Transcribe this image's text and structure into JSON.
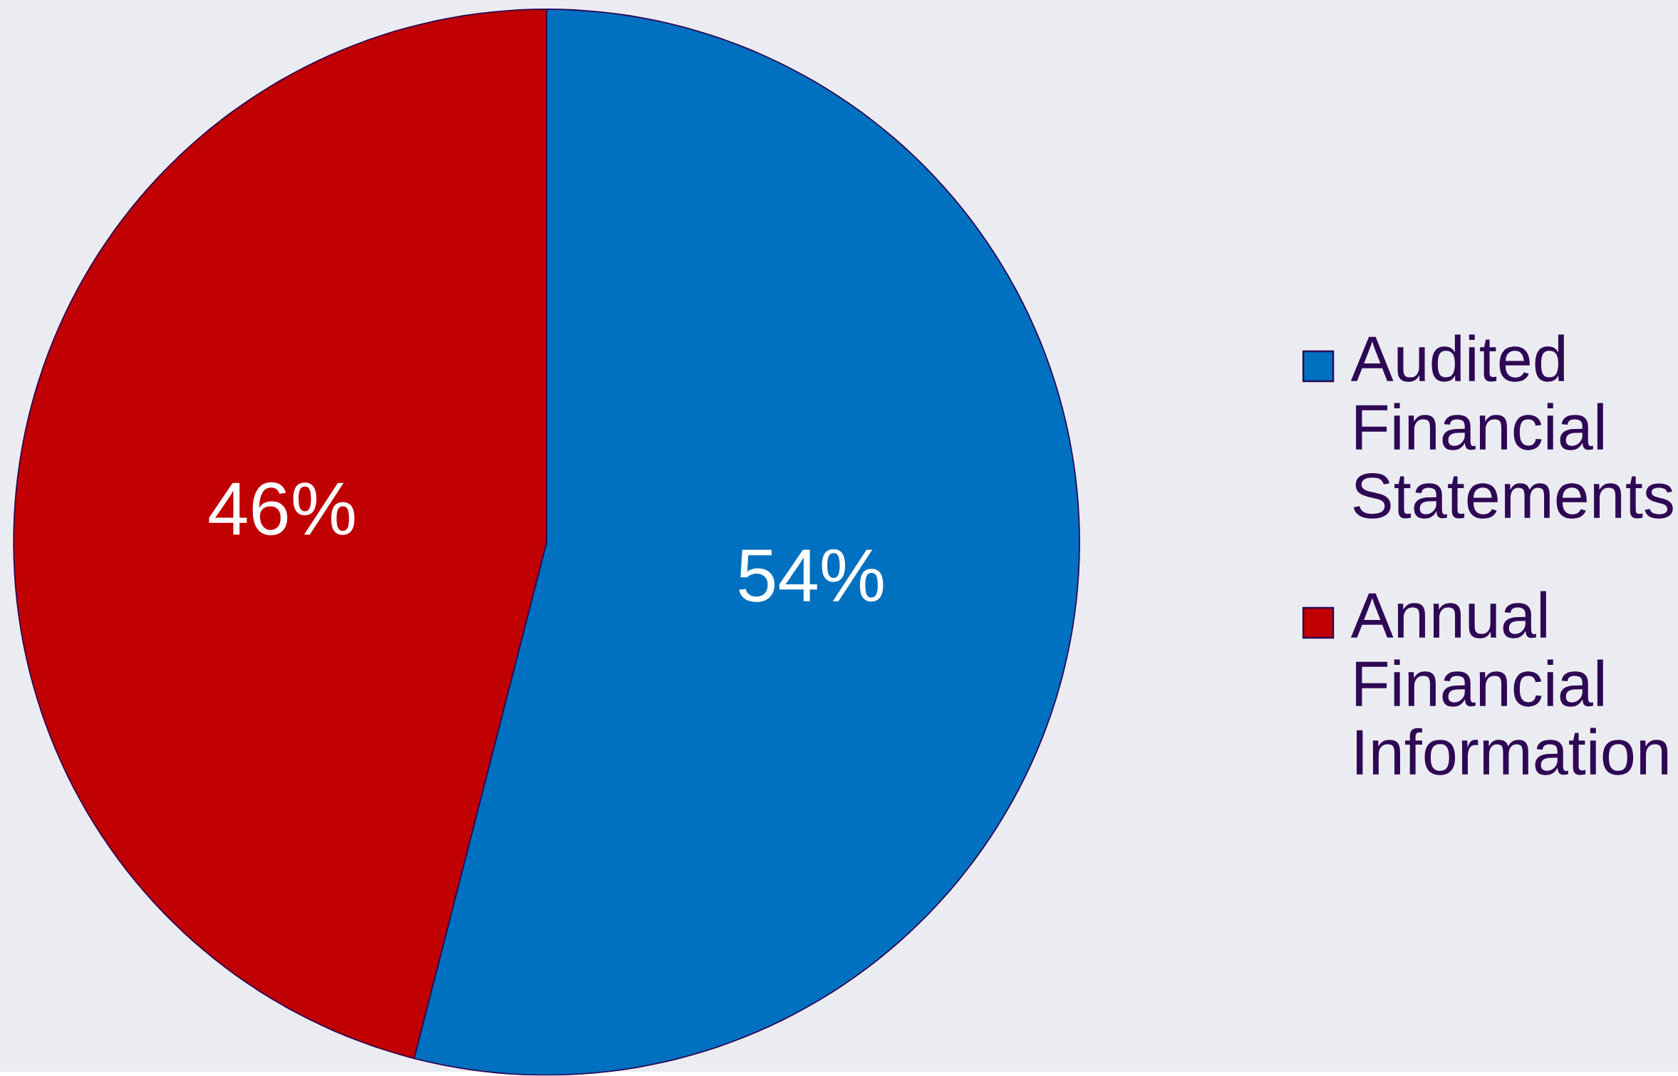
{
  "chart_data": {
    "type": "pie",
    "categories": [
      "Audited Financial Statements",
      "Annual Financial Information"
    ],
    "values": [
      54,
      46
    ],
    "value_labels": [
      "54%",
      "46%"
    ],
    "colors": [
      "#0070c0",
      "#c00000"
    ],
    "legend": "right"
  }
}
